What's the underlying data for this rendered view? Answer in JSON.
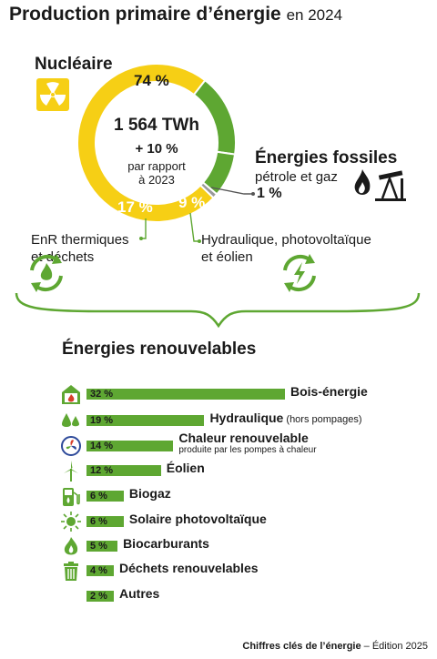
{
  "header": {
    "title_bold": "Production primaire d’énergie",
    "title_light": "en 2024"
  },
  "colors": {
    "nuclear": "#f6cf15",
    "renewable_green": "#5ea732",
    "fossil": "#9a9a9a",
    "text": "#1a1a1a"
  },
  "chart_data": [
    {
      "type": "pie",
      "title": "",
      "center": {
        "value": "1 564 TWh",
        "change": "+ 10 %",
        "change_note_line1": "par rapport",
        "change_note_line2": "à 2023"
      },
      "slices": [
        {
          "name": "Nucléaire",
          "value": 74,
          "label": "74 %"
        },
        {
          "name": "EnR thermiques et déchets",
          "value": 17,
          "label": "17 %"
        },
        {
          "name": "Hydraulique, photovoltaïque et éolien",
          "value": 9,
          "label": "9 %"
        },
        {
          "name": "Énergies fossiles",
          "value": 1,
          "label": "1 %"
        }
      ]
    },
    {
      "type": "bar",
      "title": "Énergies renouvelables",
      "orientation": "horizontal",
      "categories": [
        "Bois-énergie",
        "Hydraulique",
        "Chaleur renouvelable",
        "Éolien",
        "Biogaz",
        "Solaire photovoltaïque",
        "Biocarburants",
        "Déchets renouvelables",
        "Autres"
      ],
      "values": [
        32,
        19,
        14,
        12,
        6,
        6,
        5,
        4,
        2
      ],
      "value_labels": [
        "32 %",
        "19 %",
        "14 %",
        "12 %",
        "6 %",
        "6 %",
        "5 %",
        "4 %",
        "2 %"
      ],
      "notes": {
        "hydro": "(hors pompages)",
        "heat": "produite par les pompes à chaleur"
      },
      "xlim": [
        0,
        32
      ]
    }
  ],
  "labels": {
    "nuclear": "Nucléaire",
    "fossil_title": "Énergies fossiles",
    "fossil_sub": "pétrole et gaz",
    "enr_line1": "EnR thermiques",
    "enr_line2": "et déchets",
    "hydro_line1": "Hydraulique, photovoltaïque",
    "hydro_line2": "et éolien"
  },
  "icons": [
    "nuclear-icon",
    "oil-pump-icon",
    "recycle-flame-icon",
    "recycle-bolt-icon",
    "wood-house-icon",
    "water-drops-icon",
    "heat-pump-icon",
    "wind-turbine-icon",
    "biogas-pump-icon",
    "sun-icon",
    "flame-icon",
    "trash-icon"
  ],
  "footer": {
    "source_bold": "Chiffres clés de l’énergie",
    "edition": " – Édition 2025"
  }
}
